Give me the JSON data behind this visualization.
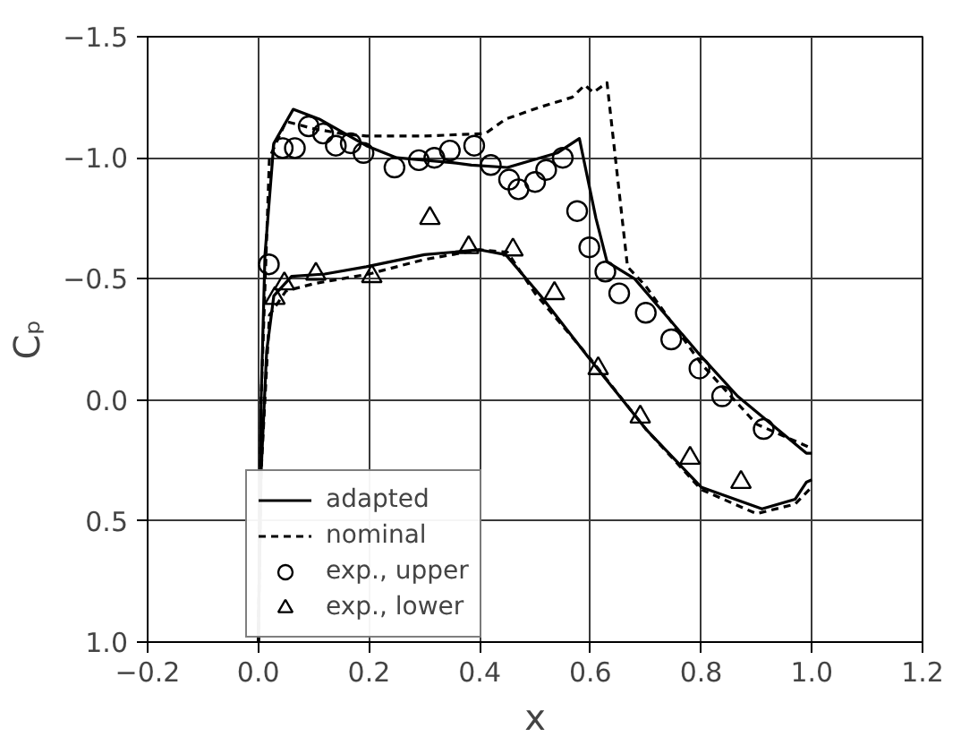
{
  "chart_data": {
    "type": "line",
    "xlabel": "x",
    "ylabel": "Cₚ",
    "xlim": [
      -0.2,
      1.2
    ],
    "xticks": [
      {
        "value": -0.2,
        "label": "−0.2"
      },
      {
        "value": 0,
        "label": "0.0"
      },
      {
        "value": 0.2,
        "label": "0.2"
      },
      {
        "value": 0.4,
        "label": "0.4"
      },
      {
        "value": 0.6,
        "label": "0.6"
      },
      {
        "value": 0.8,
        "label": "0.8"
      },
      {
        "value": 1,
        "label": "1.0"
      },
      {
        "value": 1.2,
        "label": "1.2"
      }
    ],
    "ylim": [
      1.0,
      -1.5
    ],
    "yticks": [
      {
        "value": -1.5,
        "label": "−1.5"
      },
      {
        "value": -1,
        "label": "−1.0"
      },
      {
        "value": -0.5,
        "label": "−0.5"
      },
      {
        "value": 0,
        "label": "0.0"
      },
      {
        "value": 0.5,
        "label": "0.5"
      },
      {
        "value": 1,
        "label": "1.0"
      }
    ],
    "grid": true,
    "legend": "bottom",
    "series": [
      {
        "name": "adapted",
        "line_style": "solid",
        "color": "#000000",
        "x": [
          0,
          0.005,
          0.012,
          0.028,
          0.063,
          0.11,
          0.195,
          0.25,
          0.35,
          0.385,
          0.45,
          0.54,
          0.58,
          0.61,
          0.63,
          0.68,
          0.8,
          0.866,
          0.99,
          1.0
        ],
        "values": [
          1.0,
          0.0,
          -0.6,
          -1.06,
          -1.2,
          -1.16,
          -1.05,
          -1.0,
          -0.98,
          -0.97,
          -0.96,
          -1.02,
          -1.08,
          -0.75,
          -0.57,
          -0.5,
          -0.18,
          -0.015,
          0.22,
          0.22
        ]
      },
      {
        "line_style": "solid",
        "color": "#000000",
        "x": [
          0,
          0.005,
          0.015,
          0.028,
          0.06,
          0.12,
          0.195,
          0.3,
          0.4,
          0.447,
          0.51,
          0.595,
          0.7,
          0.8,
          0.91,
          0.97,
          0.99,
          1.0
        ],
        "values": [
          1.0,
          0.3,
          -0.2,
          -0.43,
          -0.51,
          -0.52,
          -0.55,
          -0.6,
          -0.62,
          -0.6,
          -0.43,
          -0.18,
          0.12,
          0.36,
          0.45,
          0.41,
          0.34,
          0.33
        ]
      },
      {
        "name": "nominal",
        "line_style": "dashed",
        "color": "#000000",
        "x": [
          0,
          0.005,
          0.02,
          0.05,
          0.1,
          0.15,
          0.195,
          0.3,
          0.41,
          0.447,
          0.51,
          0.567,
          0.59,
          0.605,
          0.63,
          0.667,
          0.7,
          0.8,
          0.9,
          1.0
        ],
        "values": [
          1.0,
          0.0,
          -1.0,
          -1.15,
          -1.12,
          -1.1,
          -1.09,
          -1.09,
          -1.1,
          -1.16,
          -1.21,
          -1.25,
          -1.3,
          -1.27,
          -1.31,
          -0.55,
          -0.47,
          -0.15,
          0.1,
          0.2
        ]
      },
      {
        "line_style": "dashed",
        "color": "#000000",
        "x": [
          0,
          0.005,
          0.02,
          0.05,
          0.1,
          0.2,
          0.3,
          0.4,
          0.45,
          0.5,
          0.6,
          0.7,
          0.8,
          0.9,
          0.97,
          1.0
        ],
        "values": [
          1.0,
          0.3,
          -0.35,
          -0.45,
          -0.48,
          -0.52,
          -0.58,
          -0.62,
          -0.61,
          -0.44,
          -0.17,
          0.12,
          0.37,
          0.47,
          0.43,
          0.36
        ]
      },
      {
        "name": "exp., upper",
        "type": "scatter",
        "marker": "circle",
        "color": "#000000",
        "x": [
          0.019,
          0.044,
          0.066,
          0.091,
          0.117,
          0.14,
          0.167,
          0.19,
          0.246,
          0.29,
          0.318,
          0.346,
          0.39,
          0.42,
          0.453,
          0.47,
          0.5,
          0.52,
          0.55,
          0.576,
          0.598,
          0.627,
          0.652,
          0.7,
          0.746,
          0.797,
          0.838,
          0.913
        ],
        "values": [
          -0.56,
          -1.04,
          -1.04,
          -1.13,
          -1.1,
          -1.05,
          -1.06,
          -1.02,
          -0.96,
          -0.99,
          -1.0,
          -1.03,
          -1.05,
          -0.97,
          -0.91,
          -0.87,
          -0.9,
          -0.95,
          -1.0,
          -0.78,
          -0.63,
          -0.53,
          -0.44,
          -0.36,
          -0.25,
          -0.13,
          -0.015,
          0.12
        ]
      },
      {
        "name": "exp., lower",
        "type": "scatter",
        "marker": "triangle",
        "color": "#000000",
        "x": [
          0.03,
          0.047,
          0.104,
          0.205,
          0.31,
          0.38,
          0.46,
          0.535,
          0.614,
          0.69,
          0.78,
          0.872
        ],
        "values": [
          -0.42,
          -0.48,
          -0.52,
          -0.51,
          -0.75,
          -0.63,
          -0.62,
          -0.44,
          -0.13,
          0.07,
          0.24,
          0.34
        ]
      }
    ]
  }
}
